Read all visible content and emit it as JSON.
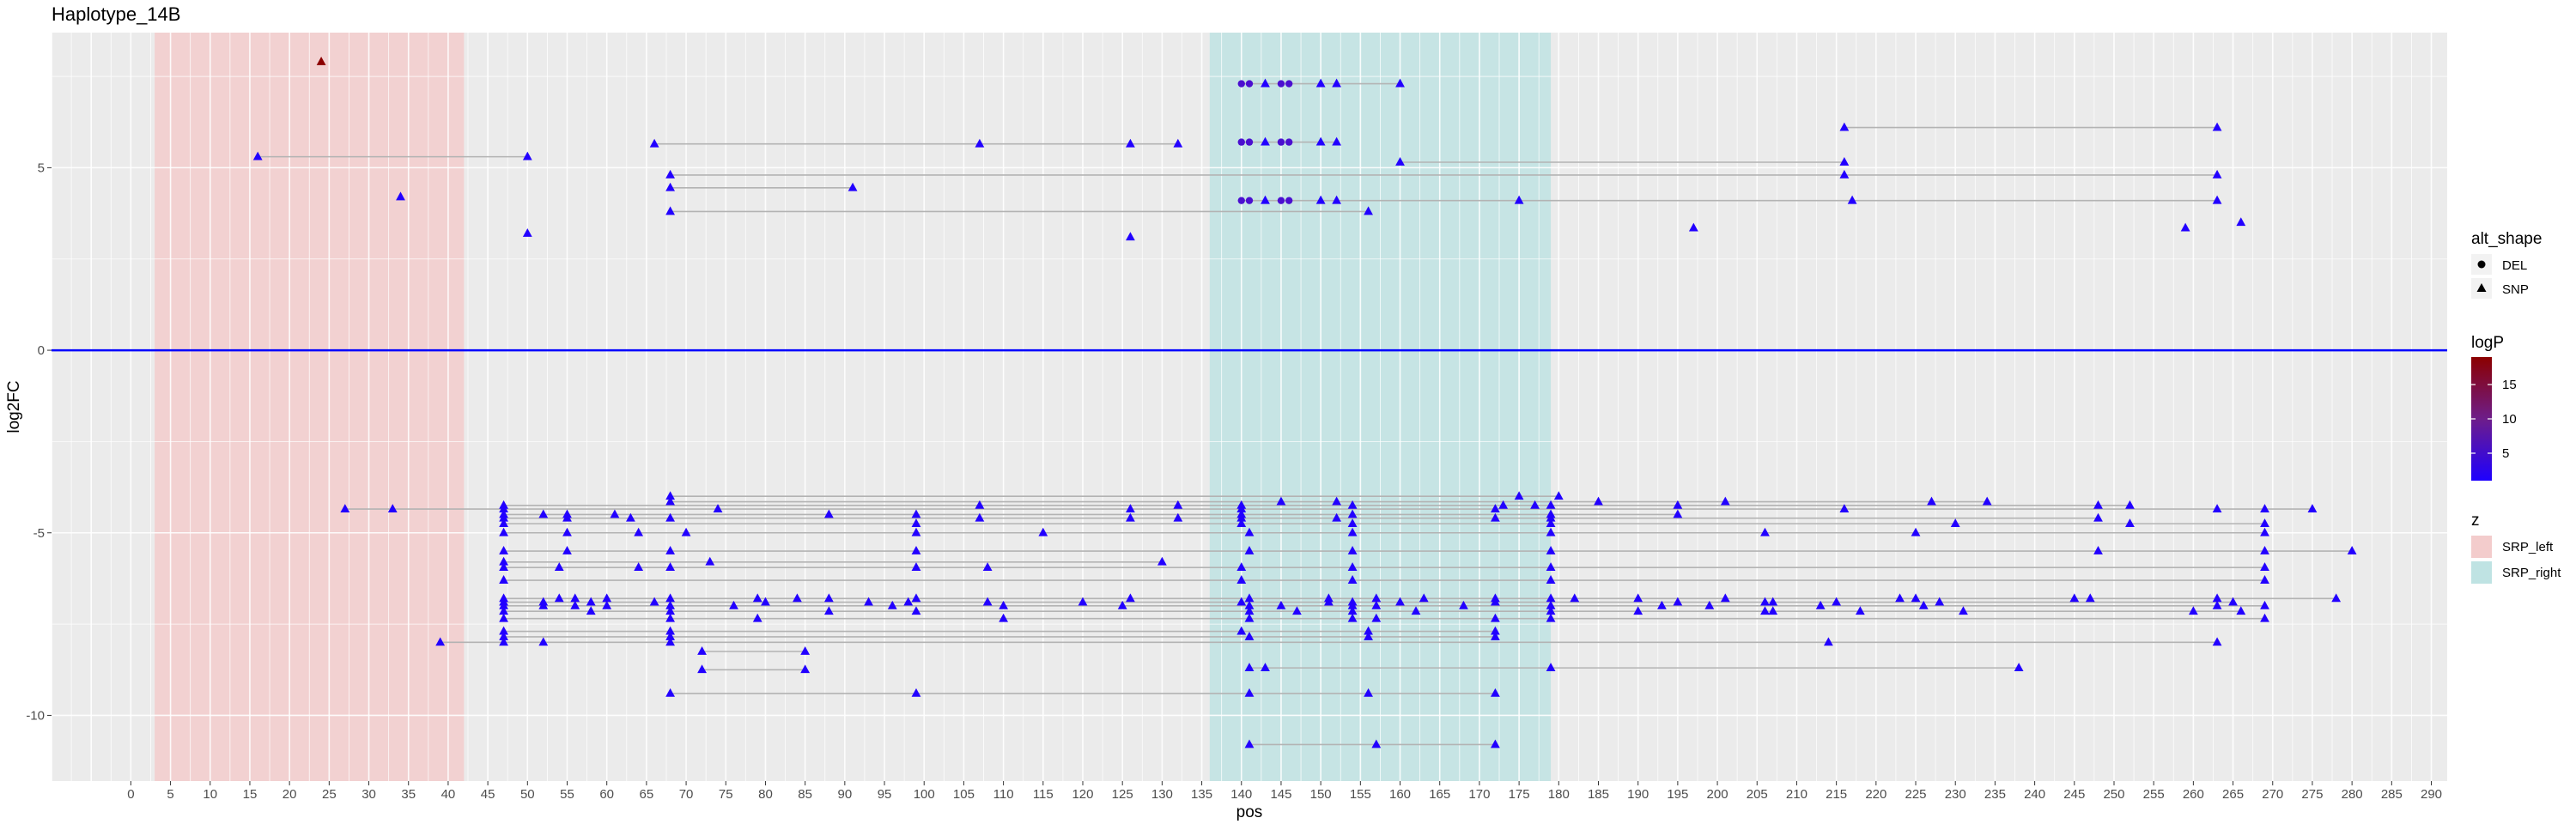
{
  "chart_data": {
    "type": "scatter",
    "title": "Haplotype_14B",
    "xlabel": "pos",
    "ylabel": "log2FC",
    "xlim": [
      -10,
      292
    ],
    "ylim": [
      -11.8,
      8.7
    ],
    "x_ticks": [
      0,
      5,
      10,
      15,
      20,
      25,
      30,
      35,
      40,
      45,
      50,
      55,
      60,
      65,
      70,
      75,
      80,
      85,
      90,
      95,
      100,
      105,
      110,
      115,
      120,
      125,
      130,
      135,
      140,
      145,
      150,
      155,
      160,
      165,
      170,
      175,
      180,
      185,
      190,
      195,
      200,
      205,
      210,
      215,
      220,
      225,
      230,
      235,
      240,
      245,
      250,
      255,
      260,
      265,
      270,
      275,
      280,
      285,
      290
    ],
    "y_ticks": [
      -10,
      -5,
      0,
      5
    ],
    "y_tick_labels": [
      "-10",
      "-5",
      "0",
      "5"
    ],
    "hline": 0,
    "grid": true,
    "regions": [
      {
        "name": "SRP_left",
        "x0": 3,
        "x1": 42,
        "color": "#f3cccc"
      },
      {
        "name": "SRP_right",
        "x0": 136,
        "x1": 179,
        "color": "#bfe3e3"
      }
    ],
    "shape_legend": {
      "title": "alt_shape",
      "entries": [
        "DEL",
        "SNP"
      ]
    },
    "color_legend": {
      "title": "logP",
      "ticks": [
        5,
        10,
        15
      ],
      "tick_labels": [
        "5",
        "10",
        "15"
      ],
      "min": 1,
      "max": 19,
      "low_color": "#1e00ff",
      "mid_color": "#6e1d8a",
      "high_color": "#8b0000"
    },
    "fill_legend": {
      "title": "z",
      "entries": [
        "SRP_left",
        "SRP_right"
      ]
    },
    "haplotype_lines": [
      {
        "y": 7.3,
        "x": [
          140,
          141,
          143,
          145,
          146,
          150,
          152,
          160
        ],
        "shape": "mixed"
      },
      {
        "y": 6.1,
        "x": [
          216,
          263
        ]
      },
      {
        "y": 5.7,
        "x": [
          140,
          141,
          143,
          145,
          146,
          150,
          152
        ],
        "shape": "mixed"
      },
      {
        "y": 5.65,
        "x": [
          66,
          107,
          126,
          132
        ]
      },
      {
        "y": 5.3,
        "x": [
          16,
          50
        ]
      },
      {
        "y": 5.15,
        "x": [
          160,
          216
        ]
      },
      {
        "y": 4.8,
        "x": [
          68,
          216,
          263
        ]
      },
      {
        "y": 4.45,
        "x": [
          68,
          91
        ]
      },
      {
        "y": 4.1,
        "x": [
          140,
          141,
          143,
          145,
          146,
          150,
          152,
          175,
          217,
          263
        ],
        "shape": "mixed"
      },
      {
        "y": 3.8,
        "x": [
          68,
          156
        ]
      },
      {
        "y": -4.0,
        "x": [
          68,
          175,
          180
        ]
      },
      {
        "y": -4.15,
        "x": [
          68,
          145,
          152,
          185,
          201,
          227,
          234
        ]
      },
      {
        "y": -4.25,
        "x": [
          47,
          107,
          132,
          140,
          154,
          173,
          177,
          179,
          195,
          248,
          252
        ]
      },
      {
        "y": -4.35,
        "x": [
          27,
          33,
          47,
          74,
          126,
          140,
          172,
          216,
          263,
          269,
          275
        ]
      },
      {
        "y": -4.5,
        "x": [
          47,
          52,
          55,
          61,
          88,
          99,
          140,
          154,
          179,
          195
        ]
      },
      {
        "y": -4.6,
        "x": [
          47,
          55,
          63,
          68,
          107,
          126,
          132,
          140,
          152,
          172,
          179,
          248
        ]
      },
      {
        "y": -4.75,
        "x": [
          47,
          99,
          140,
          154,
          179,
          230,
          252,
          269
        ]
      },
      {
        "y": -5.0,
        "x": [
          47,
          55,
          64,
          70,
          99,
          115,
          141,
          154,
          179,
          206,
          225,
          269
        ]
      },
      {
        "y": -5.5,
        "x": [
          47,
          55,
          68,
          99,
          141,
          154,
          179,
          248,
          269,
          280
        ]
      },
      {
        "y": -5.8,
        "x": [
          47,
          73,
          130
        ]
      },
      {
        "y": -5.95,
        "x": [
          47,
          54,
          64,
          68,
          99,
          108,
          140,
          154,
          179,
          269
        ]
      },
      {
        "y": -6.3,
        "x": [
          47,
          140,
          154,
          179,
          269
        ]
      },
      {
        "y": -6.8,
        "x": [
          47,
          54,
          56,
          60,
          68,
          79,
          84,
          88,
          99,
          126,
          141,
          151,
          157,
          163,
          172,
          179,
          182,
          190,
          201,
          223,
          225,
          245,
          247,
          263,
          278
        ]
      },
      {
        "y": -6.9,
        "x": [
          47,
          52,
          58,
          66,
          80,
          93,
          98,
          108,
          120,
          140,
          151,
          154,
          160,
          172,
          195,
          206,
          207,
          215,
          228,
          265
        ]
      },
      {
        "y": -7.0,
        "x": [
          47,
          52,
          56,
          60,
          68,
          76,
          96,
          110,
          125,
          141,
          145,
          154,
          157,
          168,
          179,
          193,
          199,
          213,
          226,
          263,
          269
        ]
      },
      {
        "y": -7.15,
        "x": [
          47,
          58,
          68,
          88,
          99,
          141,
          147,
          154,
          162,
          179,
          190,
          206,
          207,
          218,
          231,
          260,
          266
        ]
      },
      {
        "y": -7.35,
        "x": [
          47,
          68,
          79,
          110,
          141,
          154,
          157,
          172,
          179,
          269
        ]
      },
      {
        "y": -7.7,
        "x": [
          47,
          68,
          140,
          156,
          172
        ]
      },
      {
        "y": -7.85,
        "x": [
          47,
          68,
          141,
          156,
          172
        ]
      },
      {
        "y": -8.0,
        "x": [
          39,
          47,
          52,
          68,
          214,
          263
        ]
      },
      {
        "y": -8.25,
        "x": [
          72,
          85
        ]
      },
      {
        "y": -8.7,
        "x": [
          141,
          143,
          179,
          238
        ]
      },
      {
        "y": -8.75,
        "x": [
          72,
          85
        ]
      },
      {
        "y": -9.4,
        "x": [
          68,
          99,
          141,
          156,
          172
        ]
      },
      {
        "y": -10.8,
        "x": [
          141,
          157,
          172
        ]
      }
    ],
    "isolated_points": [
      {
        "x": 24,
        "y": 7.9,
        "logP": 19
      },
      {
        "x": 34,
        "y": 4.2
      },
      {
        "x": 50,
        "y": 3.2
      },
      {
        "x": 126,
        "y": 3.1
      },
      {
        "x": 197,
        "y": 3.35
      },
      {
        "x": 259,
        "y": 3.35
      },
      {
        "x": 266,
        "y": 3.5
      }
    ]
  }
}
